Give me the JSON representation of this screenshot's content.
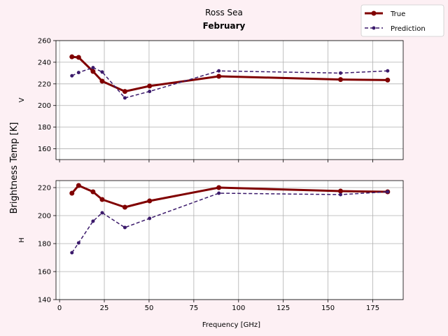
{
  "chart_data": {
    "type": "line",
    "title": "Ross Sea",
    "subtitle": "February",
    "ylabel": "Brightness Temp [K]",
    "xlabel": "Frequency [GHz]",
    "legend": {
      "placement": "top-right",
      "entries": [
        "True",
        "Prediction"
      ]
    },
    "colors": {
      "true": "#800000",
      "prediction": "#3b1a6b",
      "background": "#fdf0f4"
    },
    "x_ticks": [
      0,
      25,
      50,
      75,
      100,
      125,
      150,
      175
    ],
    "xlim": [
      -2,
      192
    ],
    "panels": [
      {
        "name": "V",
        "ylabel": "V",
        "ylim": [
          150,
          260
        ],
        "y_ticks": [
          160,
          180,
          200,
          220,
          240,
          260
        ],
        "grid": true,
        "show_x_tick_labels": false,
        "series": [
          {
            "name": "True",
            "x": [
              6.9,
              10.65,
              18.7,
              23.8,
              36.5,
              50.3,
              89,
              157,
              183.31
            ],
            "y": [
              245,
              244.5,
              231.5,
              222.5,
              213,
              218,
              227,
              224,
              223.5
            ]
          },
          {
            "name": "Prediction",
            "x": [
              6.9,
              10.65,
              18.7,
              23.8,
              36.5,
              50.3,
              89,
              157,
              183.31
            ],
            "y": [
              227.5,
              230.5,
              235,
              231,
              207,
              213,
              232,
              230,
              232
            ]
          }
        ]
      },
      {
        "name": "H",
        "ylabel": "H",
        "ylim": [
          140,
          225
        ],
        "y_ticks": [
          140,
          160,
          180,
          200,
          220
        ],
        "grid": true,
        "show_x_tick_labels": true,
        "series": [
          {
            "name": "True",
            "x": [
              6.9,
              10.65,
              18.7,
              23.8,
              36.5,
              50.3,
              89,
              157,
              183.31
            ],
            "y": [
              216,
              221.5,
              217,
              211.5,
              206,
              210.5,
              220,
              217.5,
              217
            ]
          },
          {
            "name": "Prediction",
            "x": [
              6.9,
              10.65,
              18.7,
              23.8,
              36.5,
              50.3,
              89,
              157,
              183.31
            ],
            "y": [
              173.5,
              180.5,
              196,
              202,
              191.5,
              198,
              216,
              215,
              217
            ]
          }
        ]
      }
    ]
  }
}
